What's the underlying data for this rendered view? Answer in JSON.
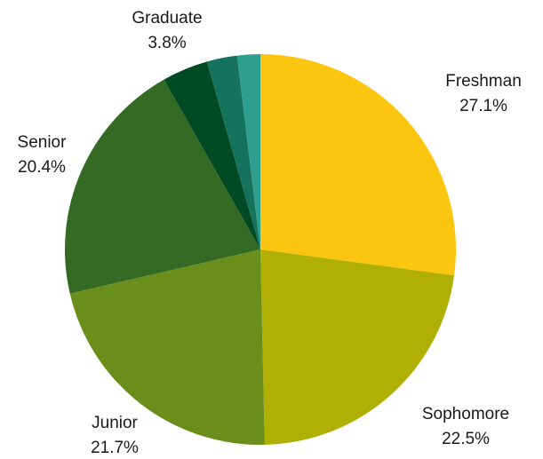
{
  "chart_data": {
    "type": "pie",
    "categories": [
      "Freshman",
      "Sophomore",
      "Junior",
      "Senior",
      "Graduate",
      "",
      ""
    ],
    "values": [
      27.1,
      22.5,
      21.7,
      20.4,
      3.8,
      2.5,
      1.9
    ],
    "value_labels": [
      "27.1%",
      "22.5%",
      "21.7%",
      "20.4%",
      "3.8%",
      "",
      ""
    ],
    "colors": [
      "#fcc50f",
      "#afb003",
      "#6a8e1b",
      "#356a24",
      "#004b23",
      "#15735d",
      "#2e9e8e"
    ],
    "start_angle": "12 o'clock",
    "direction": "clockwise",
    "title": "",
    "legend": "none"
  }
}
